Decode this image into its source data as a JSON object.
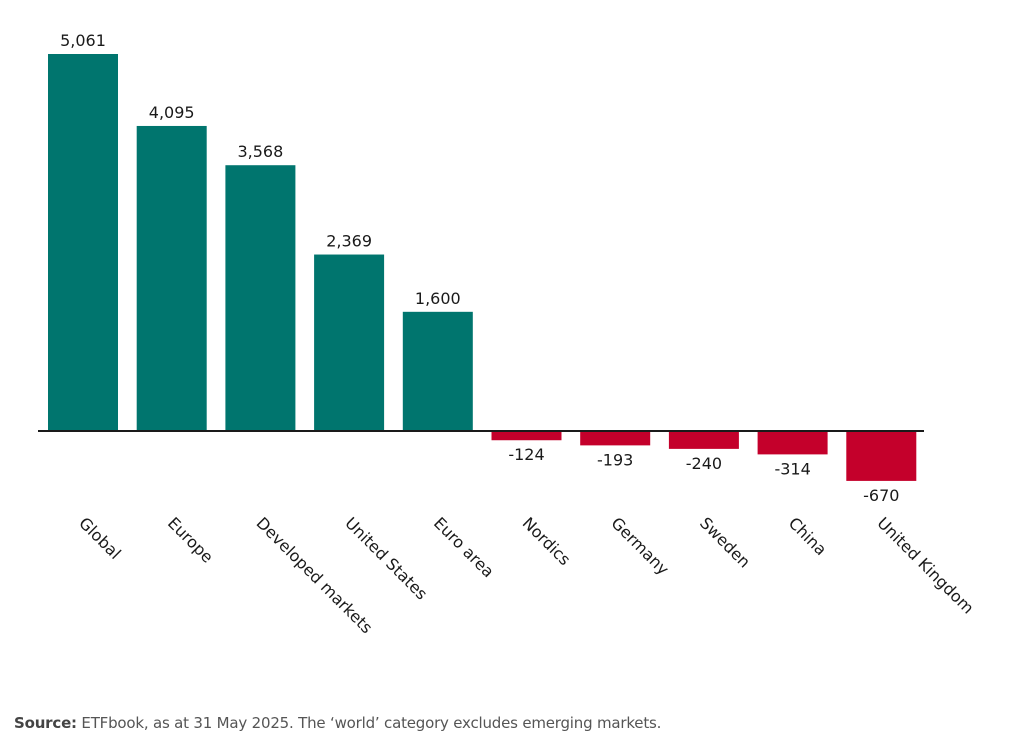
{
  "chart_data": {
    "type": "bar",
    "title": "",
    "xlabel": "",
    "ylabel": "",
    "categories": [
      "Global",
      "Europe",
      "Developed markets",
      "United States",
      "Euro area",
      "Nordics",
      "Germany",
      "Sweden",
      "China",
      "United Kingdom"
    ],
    "values": [
      5061,
      4095,
      3568,
      2369,
      1600,
      -124,
      -193,
      -240,
      -314,
      -670
    ],
    "value_labels": [
      "5,061",
      "4,095",
      "3,568",
      "2,369",
      "1,600",
      "-124",
      "-193",
      "-240",
      "-314",
      "-670"
    ],
    "ylim": [
      -670,
      5061
    ],
    "grid": false,
    "legend": "none",
    "colors": {
      "positive": "#00756E",
      "negative": "#C4002B",
      "axis": "#1a1a1a"
    }
  },
  "source": {
    "label": "Source:",
    "text": " ETFbook, as at 31 May 2025. The ‘world’ category excludes emerging markets."
  }
}
